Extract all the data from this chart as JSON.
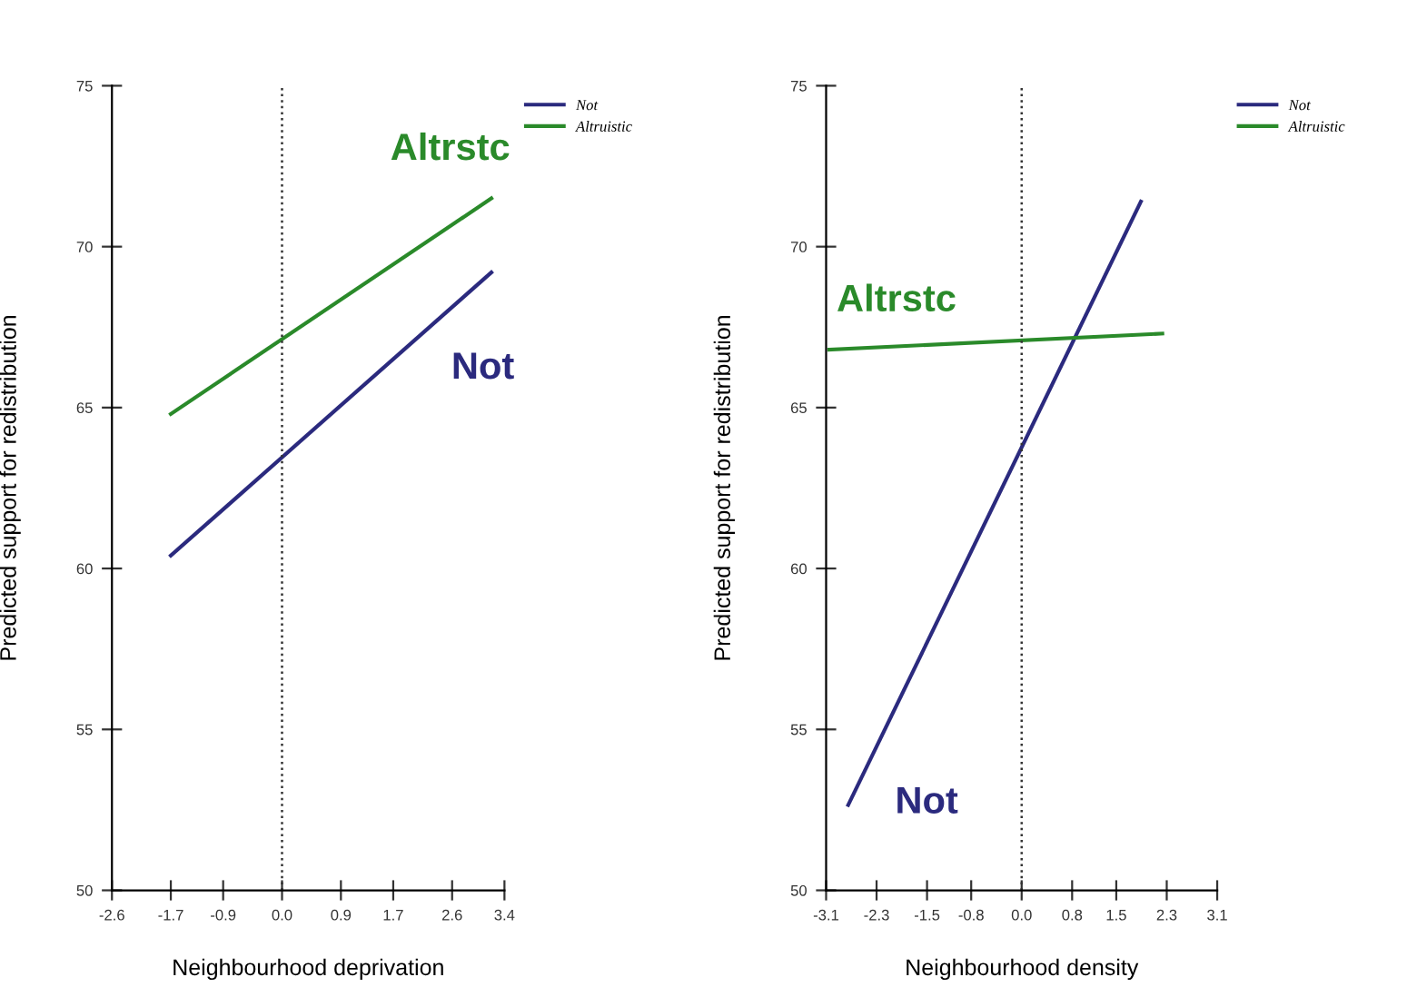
{
  "chart_data": [
    {
      "type": "line",
      "xlabel": "Neighbourhood deprivation",
      "ylabel": "Predicted support for redistribution",
      "xlim": [
        -2.6,
        3.4
      ],
      "xticks": [
        -2.6,
        -1.7,
        -0.9,
        {
          "value": 0,
          "label": "0.0"
        },
        0.9,
        1.7,
        2.6,
        3.4
      ],
      "ylim": [
        50,
        75
      ],
      "yticks": [
        50,
        55,
        60,
        65,
        70,
        75
      ],
      "grid": false,
      "legend": "top right",
      "marker": "none",
      "line_style": "solid",
      "series": [
        {
          "name": "Not",
          "color": "#2b2a7e",
          "x": [
            -1.7,
            3.2
          ],
          "values": [
            60.4,
            69.2
          ]
        },
        {
          "name": "Altruistic",
          "color": "#2a8a2a",
          "x": [
            -1.7,
            3.2
          ],
          "values": [
            64.8,
            71.5
          ]
        }
      ],
      "ref_lines": [
        {
          "axis": "x",
          "value": 0.0,
          "line_style": "dotted",
          "color": "#333333"
        }
      ],
      "annotations": [
        "Altrstc",
        "Not"
      ]
    },
    {
      "type": "line",
      "xlabel": "Neighbourhood density",
      "ylabel": "Predicted support for redistribution",
      "xlim": [
        -3.1,
        3.1
      ],
      "xticks": [
        -3.1,
        -2.3,
        -1.5,
        -0.8,
        {
          "value": 0,
          "label": "0.0"
        },
        0.8,
        1.5,
        2.3,
        3.1
      ],
      "ylim": [
        50,
        75
      ],
      "yticks": [
        50,
        55,
        60,
        65,
        70,
        75
      ],
      "grid": false,
      "legend": "top right",
      "marker": "none",
      "line_style": "solid",
      "series": [
        {
          "name": "Not",
          "color": "#2b2a7e",
          "x": [
            -2.75,
            1.89
          ],
          "values": [
            52.65,
            71.4
          ]
        },
        {
          "name": "Altruistic",
          "color": "#2a8a2a",
          "x": [
            -3.05,
            2.23
          ],
          "values": [
            66.8,
            67.3
          ]
        }
      ],
      "ref_lines": [
        {
          "axis": "x",
          "value": 0.0,
          "line_style": "dotted",
          "color": "#333333"
        }
      ],
      "annotations": [
        "Altrstc",
        "Not"
      ]
    }
  ]
}
